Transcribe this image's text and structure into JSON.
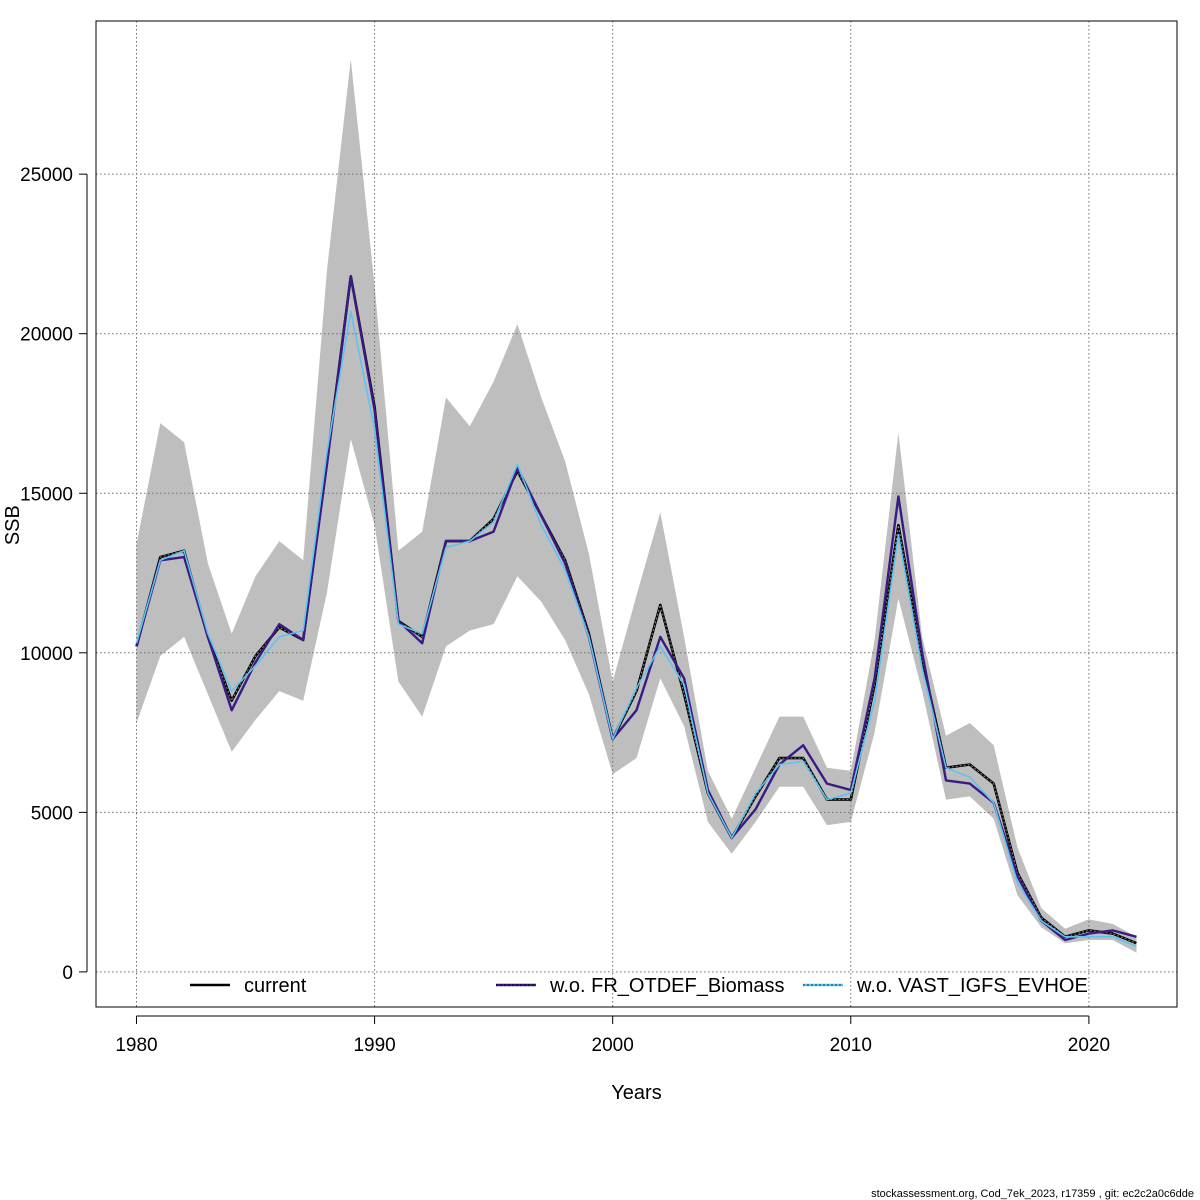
{
  "chart_data": {
    "type": "line",
    "xlabel": "Years",
    "ylabel": "SSB",
    "xlim": [
      1978.3,
      2023.7
    ],
    "ylim": [
      -1100,
      29800
    ],
    "x_ticks": [
      1980,
      1990,
      2000,
      2010,
      2020
    ],
    "y_ticks": [
      0,
      5000,
      10000,
      15000,
      20000,
      25000
    ],
    "grid": true,
    "legend_position": "bottom",
    "x": [
      1980,
      1981,
      1982,
      1983,
      1984,
      1985,
      1986,
      1987,
      1988,
      1989,
      1990,
      1991,
      1992,
      1993,
      1994,
      1995,
      1996,
      1997,
      1998,
      1999,
      2000,
      2001,
      2002,
      2003,
      2004,
      2005,
      2006,
      2007,
      2008,
      2009,
      2010,
      2011,
      2012,
      2013,
      2014,
      2015,
      2016,
      2017,
      2018,
      2019,
      2020,
      2021,
      2022
    ],
    "band": {
      "color": "#bebebe",
      "upper": [
        13400,
        17200,
        16600,
        12800,
        10600,
        12400,
        13500,
        12900,
        22000,
        28600,
        21500,
        13200,
        13800,
        18000,
        17100,
        18500,
        20300,
        18000,
        16000,
        13100,
        9100,
        11800,
        14400,
        10500,
        6300,
        4800,
        6400,
        8000,
        8000,
        6400,
        6300,
        10400,
        16900,
        10500,
        7400,
        7800,
        7100,
        3900,
        2000,
        1350,
        1650,
        1500,
        1100
      ],
      "lower": [
        7800,
        9900,
        10500,
        8700,
        6900,
        7900,
        8800,
        8500,
        11900,
        16700,
        14000,
        9100,
        8000,
        10200,
        10700,
        10900,
        12400,
        11600,
        10400,
        8700,
        6200,
        6700,
        9200,
        7700,
        4700,
        3700,
        4700,
        5800,
        5800,
        4600,
        4700,
        7500,
        11700,
        8800,
        5400,
        5500,
        4800,
        2400,
        1400,
        900,
        1000,
        1000,
        600
      ]
    },
    "series": [
      {
        "name": "current",
        "color": "#000000",
        "values": [
          10200,
          13000,
          13200,
          10500,
          8500,
          9900,
          10800,
          10400,
          16000,
          21800,
          17700,
          11000,
          10500,
          13500,
          13500,
          14200,
          15700,
          14300,
          12900,
          10600,
          7300,
          8800,
          11500,
          8700,
          5600,
          4200,
          5500,
          6700,
          6700,
          5400,
          5400,
          9000,
          14000,
          9800,
          6400,
          6500,
          5900,
          3100,
          1700,
          1100,
          1300,
          1200,
          900
        ]
      },
      {
        "name": "w.o. FR_OTDEF_Biomass",
        "color": "#3a1a84",
        "values": [
          10200,
          12900,
          13000,
          10500,
          8200,
          9700,
          10900,
          10400,
          15900,
          21800,
          17600,
          11000,
          10300,
          13500,
          13500,
          13800,
          15800,
          14300,
          12800,
          10500,
          7300,
          8200,
          10500,
          9200,
          5700,
          4200,
          5100,
          6500,
          7100,
          5900,
          5700,
          9200,
          14900,
          10000,
          6000,
          5900,
          5300,
          3000,
          1600,
          1000,
          1200,
          1300,
          1100
        ]
      },
      {
        "name": "w.o. VAST_IGFS_EVHOE",
        "color": "#5cc4ee",
        "values": [
          10300,
          12900,
          13200,
          10600,
          8800,
          9600,
          10500,
          10700,
          16300,
          20700,
          17000,
          10900,
          10600,
          13300,
          13500,
          14100,
          15900,
          14000,
          12600,
          10500,
          7300,
          8900,
          10200,
          9000,
          5600,
          4200,
          5600,
          6500,
          6600,
          5400,
          5600,
          8500,
          13700,
          9500,
          6400,
          6100,
          5300,
          2800,
          1600,
          1100,
          1100,
          1100,
          800
        ]
      }
    ]
  },
  "footer": "stockassessment.org, Cod_7ek_2023, r17359 , git: ec2c2a0c6dde"
}
